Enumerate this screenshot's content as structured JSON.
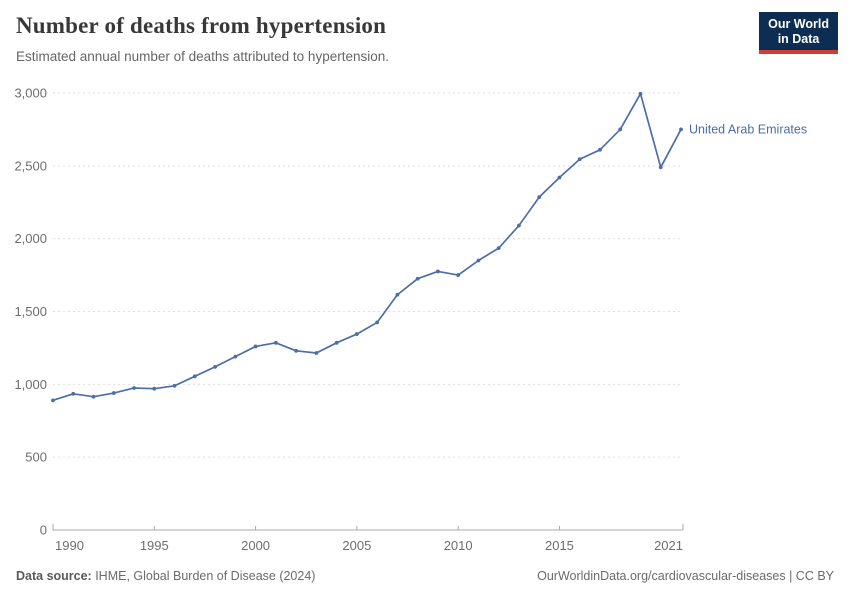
{
  "header": {
    "title": "Number of deaths from hypertension",
    "subtitle": "Estimated annual number of deaths attributed to hypertension.",
    "logo": {
      "line1": "Our World",
      "line2": "in Data"
    }
  },
  "chart_data": {
    "type": "line",
    "title": "Number of deaths from hypertension",
    "xlabel": "",
    "ylabel": "",
    "xlim": [
      1990,
      2021
    ],
    "ylim": [
      0,
      3000
    ],
    "yticks": [
      0,
      500,
      1000,
      1500,
      2000,
      2500,
      3000
    ],
    "xticks": [
      1990,
      1995,
      2000,
      2005,
      2010,
      2015,
      2021
    ],
    "grid": "horizontal-dashed",
    "legend_position": "end-of-line-label",
    "series": [
      {
        "name": "United Arab Emirates",
        "color": "#4c6ea8",
        "x": [
          1990,
          1991,
          1992,
          1993,
          1994,
          1995,
          1996,
          1997,
          1998,
          1999,
          2000,
          2001,
          2002,
          2003,
          2004,
          2005,
          2006,
          2007,
          2008,
          2009,
          2010,
          2011,
          2012,
          2013,
          2014,
          2015,
          2016,
          2017,
          2018,
          2019,
          2020,
          2021
        ],
        "values": [
          890,
          935,
          915,
          940,
          975,
          970,
          990,
          1055,
          1120,
          1190,
          1260,
          1285,
          1230,
          1215,
          1285,
          1345,
          1425,
          1615,
          1725,
          1775,
          1750,
          1850,
          1935,
          2090,
          2285,
          2420,
          2545,
          2610,
          2750,
          2995,
          2490,
          2750
        ]
      }
    ]
  },
  "footer": {
    "source_label": "Data source:",
    "source_value": " IHME, Global Burden of Disease (2024)",
    "link": "OurWorldinData.org/cardiovascular-diseases | CC BY"
  },
  "colors": {
    "line": "#4c6ea8",
    "logo_bg": "#0d2d52",
    "logo_red": "#d13d33",
    "grid": "#dedede",
    "axis": "#a9a9a9",
    "tick_label": "#6e6e6e"
  }
}
